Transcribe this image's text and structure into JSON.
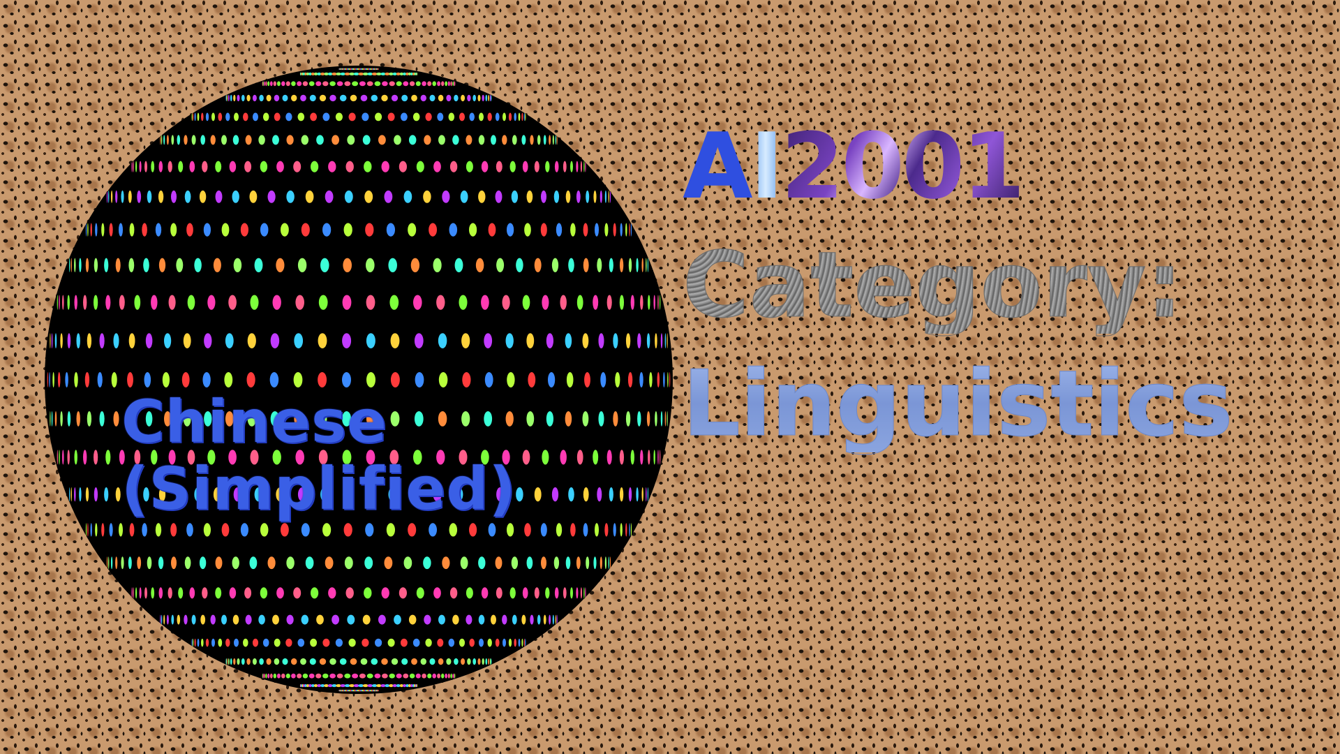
{
  "title": {
    "ai_a": "A",
    "ai_i": "I",
    "ai_number": "2001",
    "category_label": "Category:",
    "category_value": "Linguistics"
  },
  "sphere": {
    "label_line1": "Chinese",
    "label_line2": "(Simplified)",
    "base_color": "#000000"
  },
  "colors": {
    "background": "#c99a6e",
    "label_blue": "#3a5fe6",
    "category_gray": "#8d8d8d",
    "subject_blue": "#7f9ad8",
    "number_purple": "#7a44c2"
  }
}
